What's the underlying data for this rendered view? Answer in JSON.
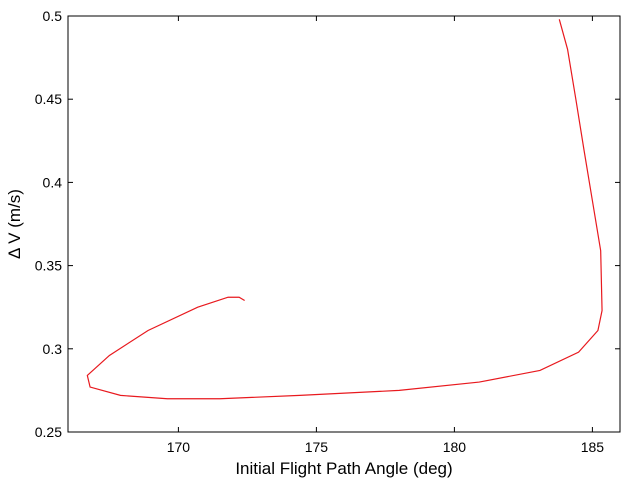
{
  "chart_data": {
    "type": "line",
    "x_label": "Initial Flight Path Angle (deg)",
    "y_label": "Δ V (m/s)",
    "xlim": [
      166,
      186
    ],
    "ylim": [
      0.25,
      0.5
    ],
    "xticks": [
      170,
      175,
      180,
      185
    ],
    "yticks": [
      0.25,
      0.3,
      0.35,
      0.4,
      0.45,
      0.5
    ],
    "grid": false,
    "series": [
      {
        "color": "#e8191e",
        "x": [
          172.4,
          172.2,
          171.8,
          170.7,
          168.9,
          167.5,
          166.7,
          166.8,
          167.9,
          169.6,
          171.5,
          174.4,
          178.0,
          180.9,
          183.1,
          184.5,
          185.2,
          185.35,
          185.3,
          185.0,
          184.7,
          184.4,
          184.1,
          183.8
        ],
        "y": [
          0.329,
          0.331,
          0.331,
          0.325,
          0.311,
          0.296,
          0.284,
          0.277,
          0.272,
          0.27,
          0.27,
          0.272,
          0.275,
          0.28,
          0.287,
          0.298,
          0.311,
          0.323,
          0.359,
          0.389,
          0.419,
          0.45,
          0.48,
          0.498
        ]
      }
    ]
  }
}
